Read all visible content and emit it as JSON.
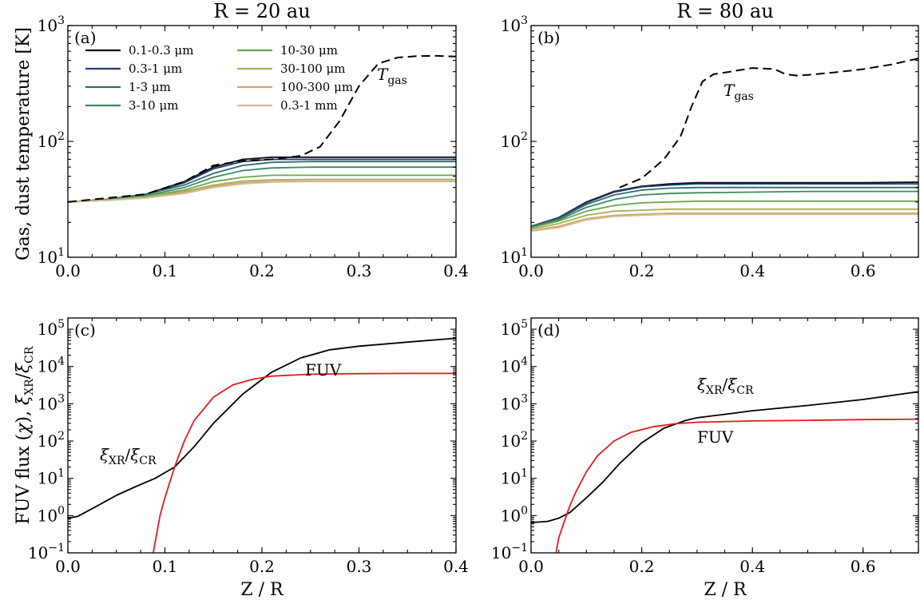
{
  "figure": {
    "ylabel_top": "Gas, dust temperature [K]",
    "ylabel_bottom": "FUV flux (χ), ξXR/ξCR",
    "xlabel": "Z / R"
  },
  "chart_data": [
    {
      "panel": "(a)",
      "type": "line",
      "title": "R = 20 au",
      "xlim": [
        0,
        0.4
      ],
      "ylim": [
        10,
        1000
      ],
      "yscale": "log",
      "xticks": [
        "0.0",
        "0.1",
        "0.2",
        "0.3",
        "0.4"
      ],
      "yticks": [
        "10^1",
        "10^2",
        "10^3"
      ],
      "legend": "top-left, two columns",
      "series": [
        {
          "name": "0.1-0.3 μm",
          "color": "#0b0f1a",
          "x": [
            0,
            0.04,
            0.08,
            0.12,
            0.15,
            0.18,
            0.21,
            0.25,
            0.3,
            0.35,
            0.4
          ],
          "y": [
            30,
            31.5,
            35,
            45,
            60,
            70,
            73,
            73,
            73,
            73,
            73
          ]
        },
        {
          "name": "0.3-1 μm",
          "color": "#233a6e",
          "x": [
            0,
            0.04,
            0.08,
            0.12,
            0.15,
            0.18,
            0.21,
            0.25,
            0.3,
            0.35,
            0.4
          ],
          "y": [
            30,
            31.5,
            35,
            44,
            58,
            67,
            70,
            70,
            70,
            70,
            70
          ]
        },
        {
          "name": "1-3 μm",
          "color": "#2f6b6b",
          "x": [
            0,
            0.04,
            0.08,
            0.12,
            0.15,
            0.18,
            0.21,
            0.25,
            0.3,
            0.35,
            0.4
          ],
          "y": [
            30,
            31.5,
            35,
            42,
            53,
            62,
            66,
            67,
            67,
            67,
            67
          ]
        },
        {
          "name": "3-10 μm",
          "color": "#3b8b5e",
          "x": [
            0,
            0.04,
            0.08,
            0.12,
            0.15,
            0.18,
            0.21,
            0.25,
            0.3,
            0.35,
            0.4
          ],
          "y": [
            30,
            31.5,
            34,
            40,
            49,
            56,
            59,
            60,
            60,
            60,
            60
          ]
        },
        {
          "name": "10-30 μm",
          "color": "#68a84f",
          "x": [
            0,
            0.04,
            0.08,
            0.12,
            0.15,
            0.18,
            0.21,
            0.25,
            0.3,
            0.35,
            0.4
          ],
          "y": [
            30,
            31,
            33.5,
            38,
            45,
            49,
            51,
            51,
            51,
            51,
            51
          ]
        },
        {
          "name": "30-100 μm",
          "color": "#a5b05a",
          "x": [
            0,
            0.04,
            0.08,
            0.12,
            0.15,
            0.18,
            0.21,
            0.25,
            0.3,
            0.35,
            0.4
          ],
          "y": [
            30,
            31,
            33,
            37,
            42,
            45.5,
            46.5,
            47,
            47,
            47,
            47
          ]
        },
        {
          "name": "100-300 μm",
          "color": "#c8aa62",
          "x": [
            0,
            0.04,
            0.08,
            0.12,
            0.15,
            0.18,
            0.21,
            0.25,
            0.3,
            0.35,
            0.4
          ],
          "y": [
            30,
            31,
            32.5,
            36,
            41,
            44,
            45,
            45.5,
            45.5,
            45.5,
            45.5
          ]
        },
        {
          "name": "0.3-1 mm",
          "color": "#d8b99a",
          "x": [
            0,
            0.04,
            0.08,
            0.12,
            0.15,
            0.18,
            0.21,
            0.25,
            0.3,
            0.35,
            0.4
          ],
          "y": [
            30,
            31,
            32.5,
            35.5,
            40,
            43,
            44.5,
            45,
            45,
            45,
            45
          ]
        },
        {
          "name": "Tgas",
          "color": "#000000",
          "dash": "11,6",
          "x": [
            0,
            0.08,
            0.12,
            0.15,
            0.18,
            0.21,
            0.24,
            0.26,
            0.28,
            0.3,
            0.32,
            0.34,
            0.36,
            0.38,
            0.4
          ],
          "y": [
            30,
            35,
            45,
            62,
            68,
            70,
            75,
            90,
            150,
            300,
            470,
            530,
            545,
            548,
            540
          ]
        }
      ],
      "annotations": [
        {
          "text": "T",
          "sub": "gas"
        }
      ]
    },
    {
      "panel": "(b)",
      "type": "line",
      "title": "R = 80 au",
      "xlim": [
        0,
        0.7
      ],
      "ylim": [
        10,
        1000
      ],
      "yscale": "log",
      "xticks": [
        "0.0",
        "0.2",
        "0.4",
        "0.6"
      ],
      "yticks": [
        "10^1",
        "10^2",
        "10^3"
      ],
      "series": [
        {
          "name": "0.1-0.3 μm",
          "color": "#0b0f1a",
          "x": [
            0,
            0.05,
            0.1,
            0.15,
            0.2,
            0.25,
            0.3,
            0.4,
            0.5,
            0.6,
            0.7
          ],
          "y": [
            18.5,
            22,
            30,
            37,
            41,
            43,
            44,
            44,
            44,
            44,
            44.5
          ]
        },
        {
          "name": "0.3-1 μm",
          "color": "#233a6e",
          "x": [
            0,
            0.05,
            0.1,
            0.15,
            0.2,
            0.25,
            0.3,
            0.4,
            0.5,
            0.6,
            0.7
          ],
          "y": [
            18.5,
            22,
            29.5,
            36.5,
            40.5,
            42,
            43,
            43,
            43,
            43,
            43
          ]
        },
        {
          "name": "1-3 μm",
          "color": "#2f6b6b",
          "x": [
            0,
            0.05,
            0.1,
            0.15,
            0.2,
            0.25,
            0.3,
            0.4,
            0.5,
            0.6,
            0.7
          ],
          "y": [
            18.5,
            21.5,
            28.5,
            34.5,
            38,
            39.5,
            40,
            40,
            40,
            40,
            40
          ]
        },
        {
          "name": "3-10 μm",
          "color": "#3b8b5e",
          "x": [
            0,
            0.05,
            0.1,
            0.15,
            0.2,
            0.25,
            0.3,
            0.4,
            0.5,
            0.6,
            0.7
          ],
          "y": [
            18,
            21,
            27,
            31.5,
            34.5,
            35.5,
            36,
            36.5,
            37,
            37,
            37
          ]
        },
        {
          "name": "10-30 μm",
          "color": "#68a84f",
          "x": [
            0,
            0.05,
            0.1,
            0.15,
            0.2,
            0.25,
            0.3,
            0.4,
            0.5,
            0.6,
            0.7
          ],
          "y": [
            18,
            20.5,
            25,
            28,
            29.5,
            30,
            30.5,
            30.5,
            30.5,
            30.5,
            30.5
          ]
        },
        {
          "name": "30-100 μm",
          "color": "#a5b05a",
          "x": [
            0,
            0.05,
            0.1,
            0.15,
            0.2,
            0.25,
            0.3,
            0.4,
            0.5,
            0.6,
            0.7
          ],
          "y": [
            17.5,
            19.5,
            23,
            25,
            25.5,
            26,
            26,
            26,
            26,
            26,
            26
          ]
        },
        {
          "name": "100-300 μm",
          "color": "#c8aa62",
          "x": [
            0,
            0.05,
            0.1,
            0.15,
            0.2,
            0.25,
            0.3,
            0.4,
            0.5,
            0.6,
            0.7
          ],
          "y": [
            17,
            18.5,
            21.5,
            23,
            23.5,
            24,
            24,
            24,
            24,
            24,
            24
          ]
        },
        {
          "name": "0.3-1 mm",
          "color": "#d8b99a",
          "x": [
            0,
            0.05,
            0.1,
            0.15,
            0.2,
            0.25,
            0.3,
            0.4,
            0.5,
            0.6,
            0.7
          ],
          "y": [
            16.8,
            18,
            21,
            22.5,
            23,
            23.5,
            23.5,
            23.5,
            23.5,
            23.5,
            23.5
          ]
        },
        {
          "name": "Tgas",
          "color": "#000000",
          "dash": "11,6",
          "x": [
            0.16,
            0.2,
            0.24,
            0.27,
            0.29,
            0.31,
            0.33,
            0.36,
            0.4,
            0.44,
            0.46,
            0.48,
            0.5,
            0.55,
            0.6,
            0.65,
            0.7
          ],
          "y": [
            40,
            48,
            70,
            110,
            200,
            330,
            380,
            400,
            430,
            420,
            380,
            370,
            375,
            395,
            420,
            460,
            520
          ]
        }
      ],
      "annotations": [
        {
          "text": "T",
          "sub": "gas"
        }
      ]
    },
    {
      "panel": "(c)",
      "type": "line",
      "title": "",
      "xlim": [
        0,
        0.4
      ],
      "ylim": [
        0.1,
        200000
      ],
      "yscale": "log",
      "xticks": [
        "0.0",
        "0.1",
        "0.2",
        "0.3",
        "0.4"
      ],
      "yticks": [
        "10^-1",
        "10^0",
        "10^1",
        "10^2",
        "10^3",
        "10^4",
        "10^5"
      ],
      "series": [
        {
          "name": "ξXR/ξCR",
          "color": "#000000",
          "x": [
            0,
            0.01,
            0.03,
            0.05,
            0.07,
            0.09,
            0.11,
            0.13,
            0.15,
            0.18,
            0.21,
            0.24,
            0.27,
            0.3,
            0.35,
            0.4
          ],
          "y": [
            0.85,
            0.95,
            1.8,
            3.5,
            6,
            10,
            20,
            70,
            300,
            1800,
            7000,
            17000,
            28000,
            35000,
            45000,
            57000
          ]
        },
        {
          "name": "FUV",
          "color": "#e41a1c",
          "x": [
            0.088,
            0.095,
            0.1,
            0.11,
            0.12,
            0.13,
            0.15,
            0.17,
            0.19,
            0.21,
            0.25,
            0.3,
            0.35,
            0.4
          ],
          "y": [
            0.1,
            1,
            3,
            20,
            100,
            350,
            1500,
            3200,
            4500,
            5500,
            6200,
            6400,
            6500,
            6500
          ]
        }
      ],
      "annotations": [
        {
          "text": "ξXR/ξCR"
        },
        {
          "text": "FUV"
        }
      ]
    },
    {
      "panel": "(d)",
      "type": "line",
      "title": "",
      "xlim": [
        0,
        0.7
      ],
      "ylim": [
        0.1,
        200000
      ],
      "yscale": "log",
      "xticks": [
        "0.0",
        "0.2",
        "0.4",
        "0.6"
      ],
      "yticks": [
        "10^-1",
        "10^0",
        "10^1",
        "10^2",
        "10^3",
        "10^4",
        "10^5"
      ],
      "series": [
        {
          "name": "ξXR/ξCR",
          "color": "#000000",
          "x": [
            0,
            0.03,
            0.05,
            0.07,
            0.1,
            0.13,
            0.16,
            0.2,
            0.24,
            0.28,
            0.3,
            0.35,
            0.4,
            0.5,
            0.6,
            0.7
          ],
          "y": [
            0.65,
            0.7,
            0.85,
            1.2,
            3,
            8,
            25,
            90,
            220,
            360,
            420,
            520,
            650,
            900,
            1300,
            2100
          ]
        },
        {
          "name": "FUV",
          "color": "#e41a1c",
          "x": [
            0.045,
            0.05,
            0.06,
            0.07,
            0.08,
            0.1,
            0.12,
            0.15,
            0.18,
            0.22,
            0.26,
            0.3,
            0.4,
            0.5,
            0.6,
            0.7
          ],
          "y": [
            0.1,
            0.25,
            0.7,
            1.8,
            4,
            15,
            40,
            100,
            170,
            240,
            290,
            320,
            345,
            360,
            375,
            385
          ]
        }
      ],
      "annotations": [
        {
          "text": "ξXR/ξCR"
        },
        {
          "text": "FUV"
        }
      ]
    }
  ]
}
